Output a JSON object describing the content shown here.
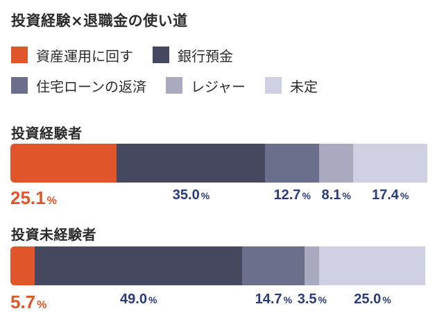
{
  "title": "投資経験×退職金の使い道",
  "chart_data": {
    "type": "bar",
    "stacked": true,
    "orientation": "horizontal",
    "title": "投資経験×退職金の使い道",
    "unit": "%",
    "legend_placement": "top",
    "categories": [
      "投資経験者",
      "投資未経験者"
    ],
    "series": [
      {
        "name": "資産運用に回す",
        "color": "#e0552a",
        "values": [
          25.1,
          5.7
        ]
      },
      {
        "name": "銀行預金",
        "color": "#45485e",
        "values": [
          35.0,
          49.0
        ]
      },
      {
        "name": "住宅ローンの返済",
        "color": "#6b6f8c",
        "values": [
          12.7,
          14.7
        ]
      },
      {
        "name": "レジャー",
        "color": "#a9aabf",
        "values": [
          8.1,
          3.5
        ]
      },
      {
        "name": "未定",
        "color": "#cfd0e2",
        "values": [
          17.4,
          25.0
        ]
      }
    ],
    "value_labels": [
      [
        "25.1",
        "35.0",
        "12.7",
        "8.1",
        "17.4"
      ],
      [
        "5.7",
        "49.0",
        "14.7",
        "3.5",
        "25.0"
      ]
    ],
    "percent_sign": "%"
  }
}
